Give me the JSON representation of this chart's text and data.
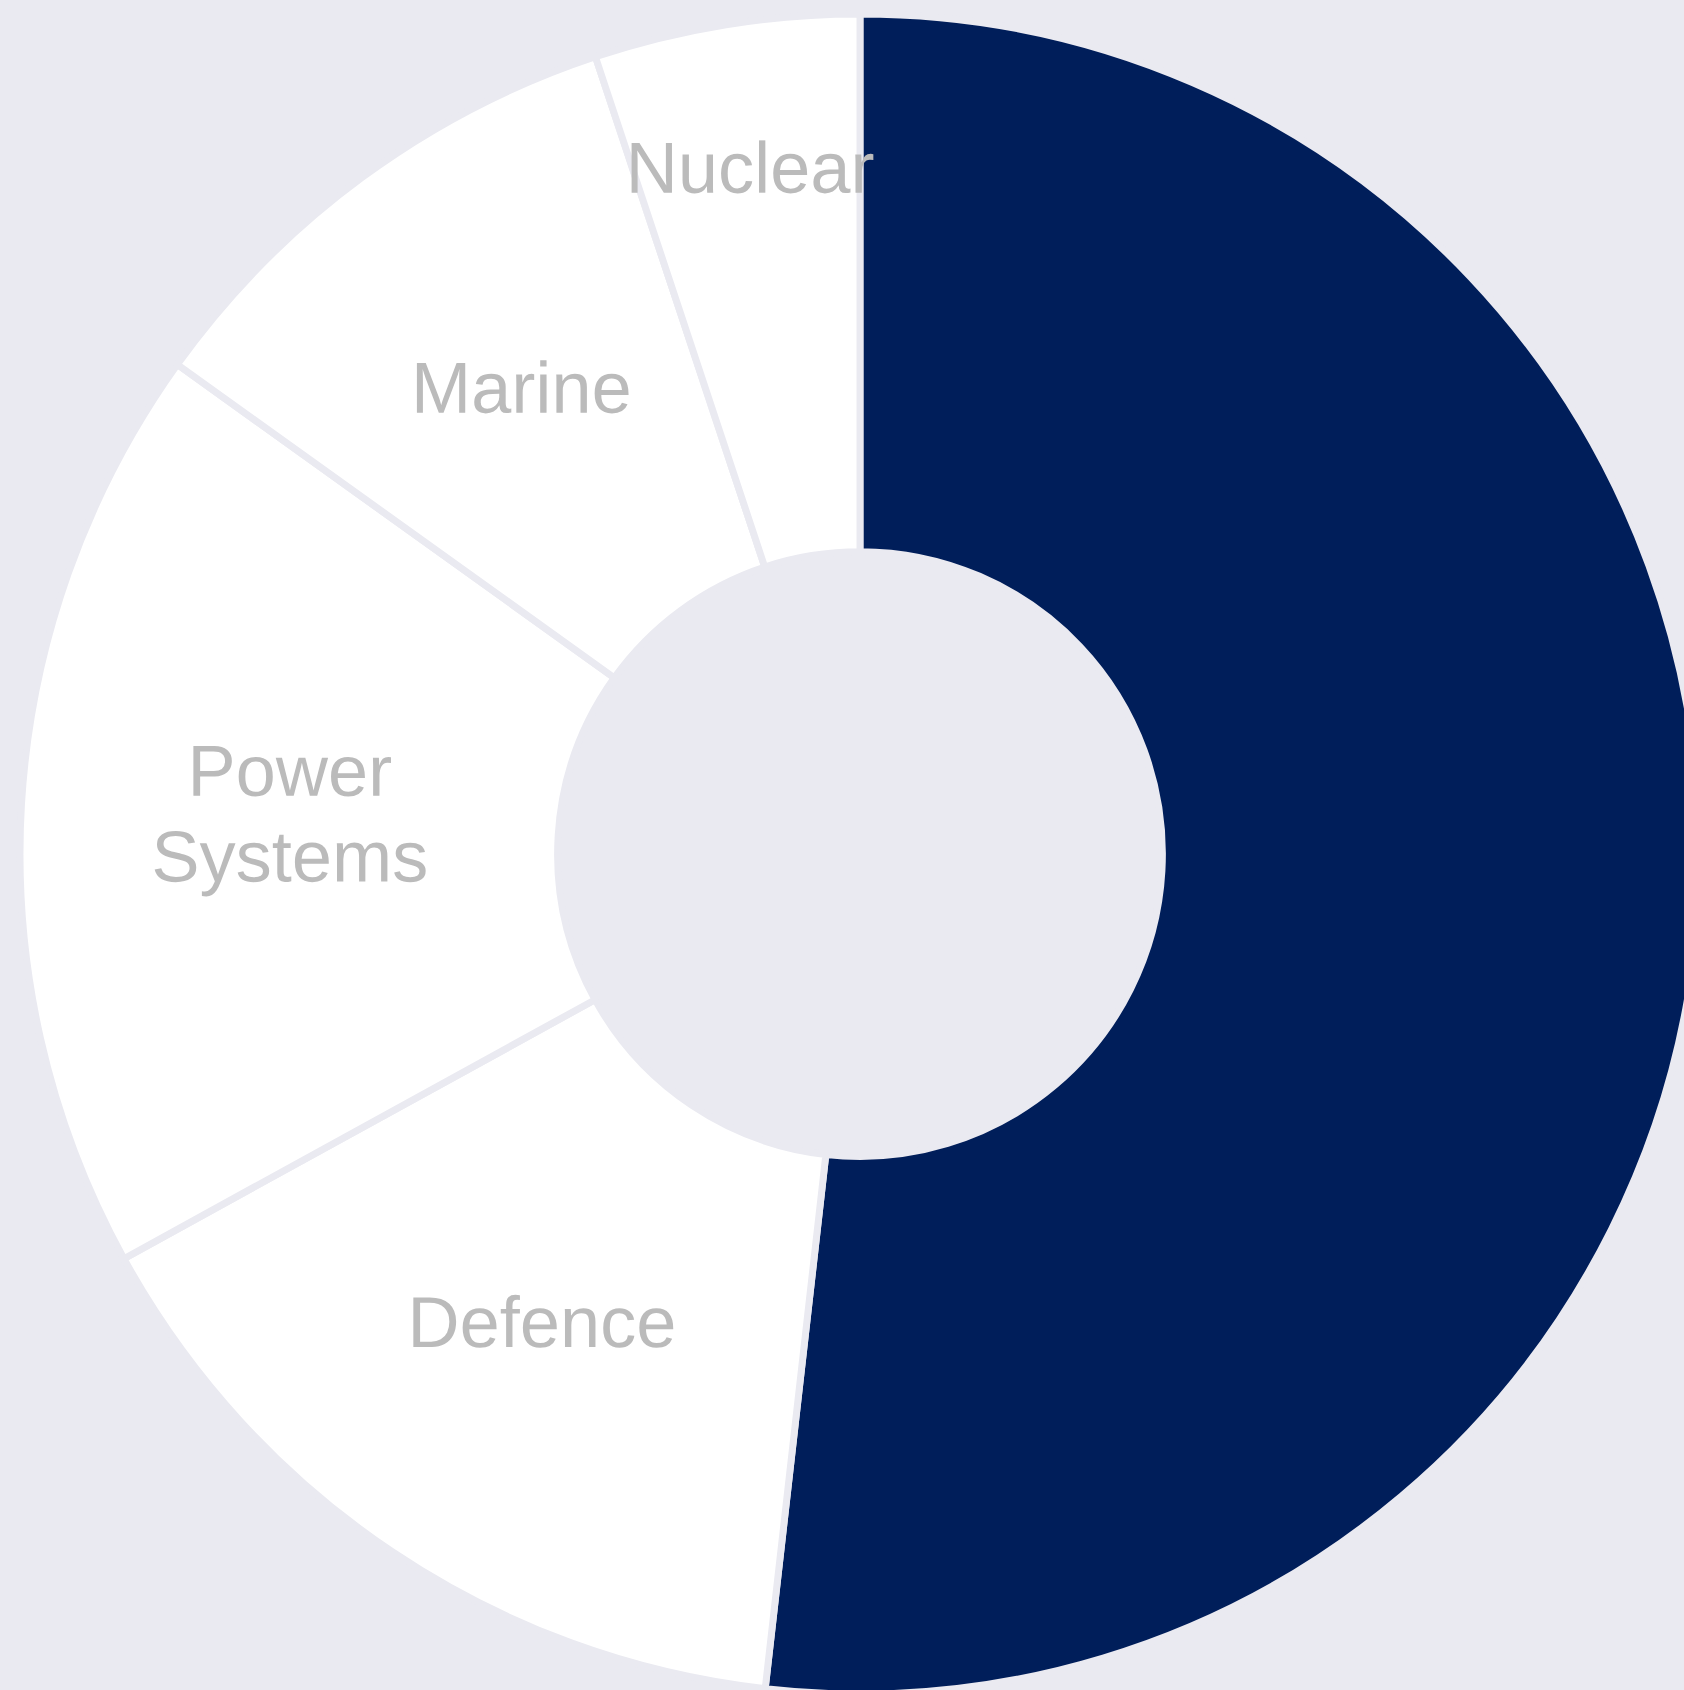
{
  "chart_data": {
    "type": "donut",
    "categories": [
      null,
      "Defence",
      "Power\nSystems",
      "Marine",
      "Nuclear"
    ],
    "values": [
      51.8,
      15.2,
      17.9,
      10.0,
      5.1
    ],
    "colors": [
      "#001e5a",
      "#ffffff",
      "#ffffff",
      "#ffffff",
      "#ffffff"
    ],
    "legend": false
  }
}
